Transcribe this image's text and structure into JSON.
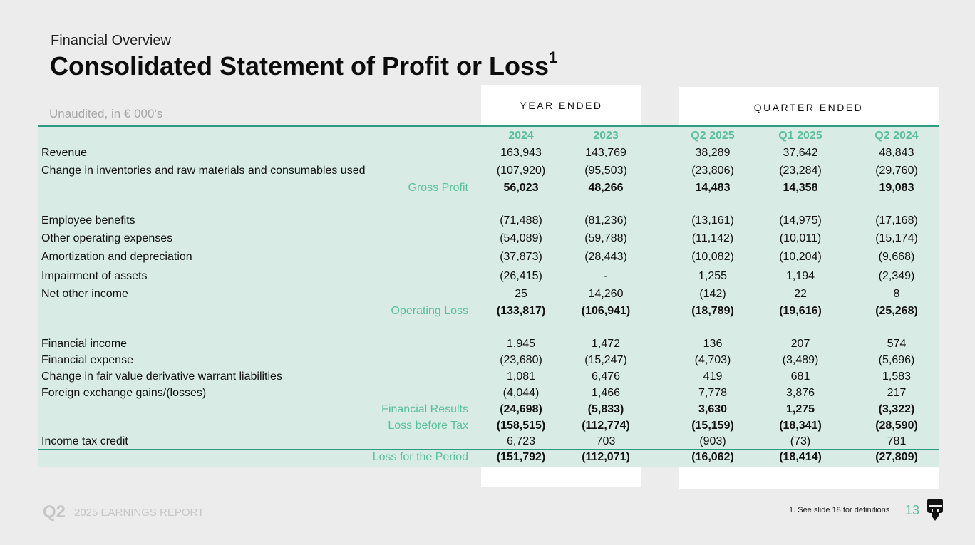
{
  "header": {
    "subtitle": "Financial Overview",
    "title": "Consolidated Statement of Profit or Loss",
    "title_footnote_mark": "1",
    "unaudited_note": "Unaudited, in € 000's"
  },
  "groups": {
    "year": "YEAR ENDED",
    "quarter": "QUARTER ENDED"
  },
  "columns": [
    "2024",
    "2023",
    "Q2 2025",
    "Q1 2025",
    "Q2 2024"
  ],
  "rows": [
    {
      "label": "Revenue",
      "values": [
        "163,943",
        "143,769",
        "38,289",
        "37,642",
        "48,843"
      ]
    },
    {
      "label": "Change in inventories and raw materials and consumables used",
      "values": [
        "(107,920)",
        "(95,503)",
        "(23,806)",
        "(23,284)",
        "(29,760)"
      ]
    },
    {
      "label": "Gross Profit",
      "subtotal": true,
      "values": [
        "56,023",
        "48,266",
        "14,483",
        "14,358",
        "19,083"
      ]
    },
    {
      "label": "Employee benefits",
      "values": [
        "(71,488)",
        "(81,236)",
        "(13,161)",
        "(14,975)",
        "(17,168)"
      ]
    },
    {
      "label": "Other operating expenses",
      "values": [
        "(54,089)",
        "(59,788)",
        "(11,142)",
        "(10,011)",
        "(15,174)"
      ]
    },
    {
      "label": "Amortization and depreciation",
      "values": [
        "(37,873)",
        "(28,443)",
        "(10,082)",
        "(10,204)",
        "(9,668)"
      ]
    },
    {
      "label": "Impairment of assets",
      "values": [
        "(26,415)",
        "-",
        "1,255",
        "1,194",
        "(2,349)"
      ]
    },
    {
      "label": "Net other income",
      "values": [
        "25",
        "14,260",
        "(142)",
        "22",
        "8"
      ]
    },
    {
      "label": "Operating Loss",
      "subtotal": true,
      "values": [
        "(133,817)",
        "(106,941)",
        "(18,789)",
        "(19,616)",
        "(25,268)"
      ]
    },
    {
      "label": "Financial income",
      "values": [
        "1,945",
        "1,472",
        "136",
        "207",
        "574"
      ]
    },
    {
      "label": "Financial expense",
      "values": [
        "(23,680)",
        "(15,247)",
        "(4,703)",
        "(3,489)",
        "(5,696)"
      ]
    },
    {
      "label": "Change in fair value derivative warrant liabilities",
      "values": [
        "1,081",
        "6,476",
        "419",
        "681",
        "1,583"
      ]
    },
    {
      "label": "Foreign exchange gains/(losses)",
      "values": [
        "(4,044)",
        "1,466",
        "7,778",
        "3,876",
        "217"
      ]
    },
    {
      "label": "Financial Results",
      "subtotal": true,
      "values": [
        "(24,698)",
        "(5,833)",
        "3,630",
        "1,275",
        "(3,322)"
      ]
    },
    {
      "label": "Loss before Tax",
      "subtotal": true,
      "values": [
        "(158,515)",
        "(112,774)",
        "(15,159)",
        "(18,341)",
        "(28,590)"
      ]
    },
    {
      "label": "Income tax credit",
      "values": [
        "6,723",
        "703",
        "(903)",
        "(73)",
        "781"
      ]
    },
    {
      "label": "Loss for the Period",
      "subtotal": true,
      "values": [
        "(151,792)",
        "(112,071)",
        "(16,062)",
        "(18,414)",
        "(27,809)"
      ]
    }
  ],
  "footer": {
    "quarter": "Q2",
    "report": "2025 EARNINGS REPORT",
    "footnote": "1. See slide 18 for definitions",
    "page_number": "13"
  },
  "colors": {
    "accent": "#5cbf9c",
    "table_bg": "#d9ebe5",
    "rule": "#2e9a7f",
    "page_bg": "#ececec"
  }
}
